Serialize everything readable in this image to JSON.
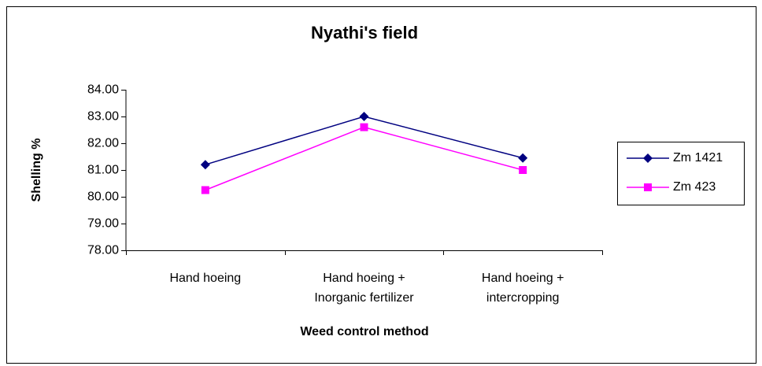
{
  "chart_data": {
    "type": "line",
    "title": "Nyathi's field",
    "x_label": "Weed control method",
    "y_label": "Shelling %",
    "categories": [
      [
        "Hand hoeing"
      ],
      [
        "Hand hoeing +",
        "Inorganic fertilizer"
      ],
      [
        "Hand hoeing +",
        "intercropping"
      ]
    ],
    "series": [
      {
        "name": "Zm 1421",
        "color": "#000080",
        "marker": "diamond",
        "values": [
          81.2,
          83.0,
          81.45
        ]
      },
      {
        "name": "Zm 423",
        "color": "#ff00ff",
        "marker": "square",
        "values": [
          80.25,
          82.6,
          81.0
        ]
      }
    ],
    "ylim": [
      78,
      84
    ],
    "yticks": [
      {
        "value": 78,
        "label": "78.00"
      },
      {
        "value": 79,
        "label": "79.00"
      },
      {
        "value": 80,
        "label": "80.00"
      },
      {
        "value": 81,
        "label": "81.00"
      },
      {
        "value": 82,
        "label": "82.00"
      },
      {
        "value": 83,
        "label": "83.00"
      },
      {
        "value": 84,
        "label": "84.00"
      }
    ],
    "legend": "right",
    "grid": false
  }
}
